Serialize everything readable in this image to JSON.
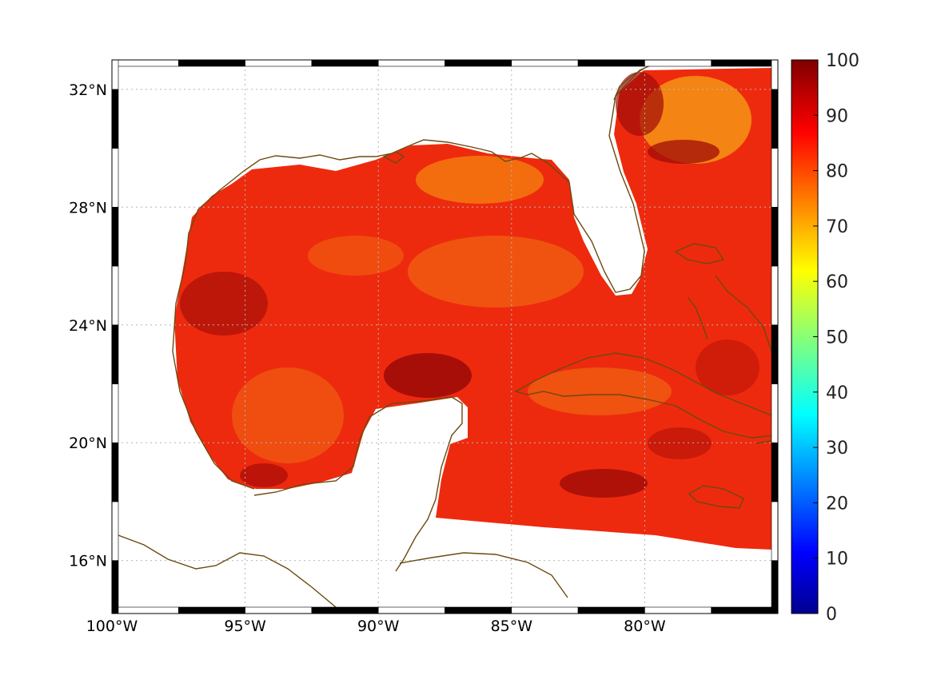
{
  "map": {
    "lon_range": [
      -100,
      -75
    ],
    "lat_range": [
      14.2,
      33
    ],
    "lon_ticks": [
      {
        "value": -100,
        "label": "100°W"
      },
      {
        "value": -95,
        "label": "95°W"
      },
      {
        "value": -90,
        "label": "90°W"
      },
      {
        "value": -85,
        "label": "85°W"
      },
      {
        "value": -80,
        "label": "80°W"
      }
    ],
    "lat_ticks": [
      {
        "value": 32,
        "label": "32°N"
      },
      {
        "value": 28,
        "label": "28°N"
      },
      {
        "value": 24,
        "label": "24°N"
      },
      {
        "value": 20,
        "label": "20°N"
      },
      {
        "value": 16,
        "label": "16°N"
      }
    ],
    "grid": "dotted",
    "coastline_color": "#6b4a10",
    "colormap": "jet",
    "field_typical_range": [
      78,
      95
    ]
  },
  "colorbar": {
    "min": 0,
    "max": 100,
    "ticks": [
      {
        "value": 100,
        "label": "100"
      },
      {
        "value": 90,
        "label": "90"
      },
      {
        "value": 80,
        "label": "80"
      },
      {
        "value": 70,
        "label": "70"
      },
      {
        "value": 60,
        "label": "60"
      },
      {
        "value": 50,
        "label": "50"
      },
      {
        "value": 40,
        "label": "40"
      },
      {
        "value": 30,
        "label": "30"
      },
      {
        "value": 20,
        "label": "20"
      },
      {
        "value": 10,
        "label": "10"
      },
      {
        "value": 0,
        "label": "0"
      }
    ]
  }
}
